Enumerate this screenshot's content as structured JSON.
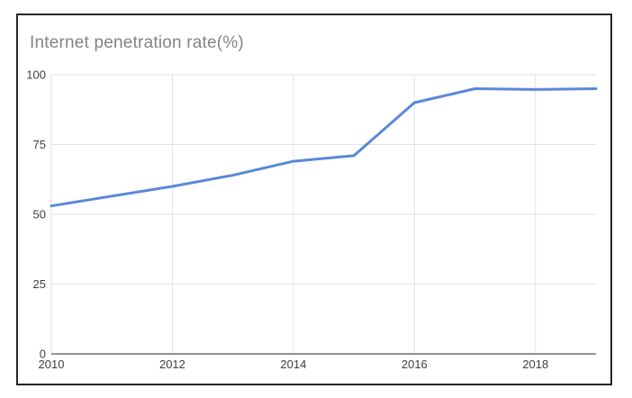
{
  "chart_data": {
    "type": "line",
    "title": "Internet penetration rate(%)",
    "x": [
      2010,
      2011,
      2012,
      2013,
      2014,
      2015,
      2016,
      2017,
      2018,
      2019
    ],
    "values": [
      53,
      56.5,
      60,
      64,
      69,
      71,
      90,
      95,
      94.7,
      95
    ],
    "xlabel": "",
    "ylabel": "",
    "xlim": [
      2010,
      2019
    ],
    "ylim": [
      0,
      100
    ],
    "yticks": [
      0,
      25,
      50,
      75,
      100
    ],
    "xticks": [
      2010,
      2012,
      2014,
      2016,
      2018
    ],
    "grid": true,
    "legend": false,
    "colors": {
      "line": "#5b87d9",
      "gridline": "#e2e2e2",
      "axis_line": "#6f6f6f",
      "tick_label": "#404040",
      "title": "#848484",
      "frame_border": "#262626",
      "background": "#ffffff"
    }
  }
}
